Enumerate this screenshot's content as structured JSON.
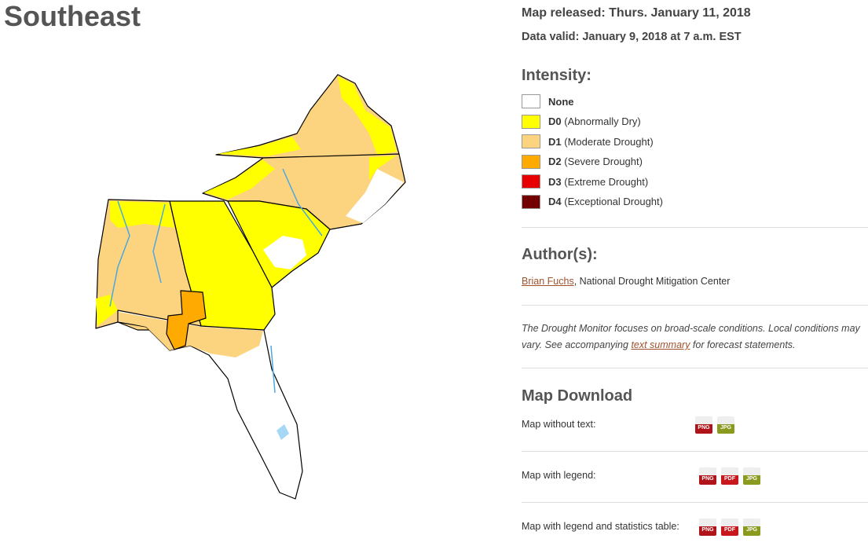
{
  "header": {
    "title": "Southeast"
  },
  "map_info": {
    "released": "Map released: Thurs. January 11, 2018",
    "valid": "Data valid: January 9, 2018 at 7 a.m. EST"
  },
  "intensity": {
    "heading": "Intensity:",
    "items": [
      {
        "code": "None",
        "color": "#ffffff"
      },
      {
        "code": "D0",
        "label": "(Abnormally Dry)",
        "color": "#ffff00"
      },
      {
        "code": "D1",
        "label": "(Moderate Drought)",
        "color": "#fcd37f"
      },
      {
        "code": "D2",
        "label": "(Severe Drought)",
        "color": "#ffaa00"
      },
      {
        "code": "D3",
        "label": "(Extreme Drought)",
        "color": "#e60000"
      },
      {
        "code": "D4",
        "label": "(Exceptional Drought)",
        "color": "#730000"
      }
    ]
  },
  "authors": {
    "heading": "Author(s):",
    "name": "Brian Fuchs",
    "affiliation": ", National Drought Mitigation Center"
  },
  "note": {
    "before": "The Drought Monitor focuses on broad-scale conditions. Local conditions may vary. See accompanying ",
    "link": "text summary",
    "after": " for forecast statements."
  },
  "download": {
    "heading": "Map Download",
    "rows": [
      {
        "label": "Map without text:",
        "formats": [
          "PNG",
          "JPG"
        ]
      },
      {
        "label": "Map with legend:",
        "formats": [
          "PNG",
          "PDF",
          "JPG"
        ]
      },
      {
        "label": "Map with legend and statistics table:",
        "formats": [
          "PNG",
          "PDF",
          "JPG"
        ]
      }
    ]
  }
}
